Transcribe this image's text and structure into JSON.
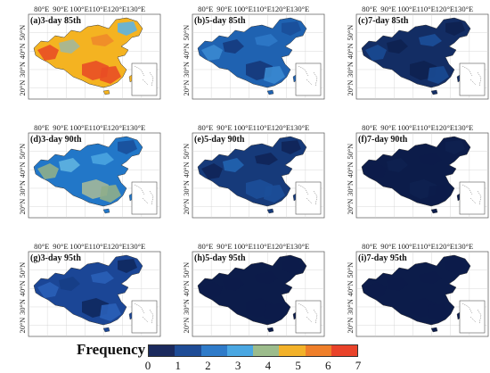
{
  "lon_ticks": [
    "80°E",
    "90°E",
    "100°E",
    "110°E",
    "120°E",
    "130°E"
  ],
  "lat_ticks": [
    "50°N",
    "40°N",
    "30°N",
    "20°N"
  ],
  "panels": [
    {
      "title": "(a)3-day 85th",
      "base": "#f4b321",
      "blobs": [
        {
          "c": "#e94e25"
        },
        {
          "c": "#e94e25"
        },
        {
          "c": "#f08a2a"
        },
        {
          "c": "#a3b79a"
        },
        {
          "c": "#e94e25"
        },
        {
          "c": "#5fb2e0"
        }
      ]
    },
    {
      "title": "(b)5-day 85th",
      "base": "#1f62b1",
      "blobs": [
        {
          "c": "#3a8ad2"
        },
        {
          "c": "#15397a"
        },
        {
          "c": "#2d79c8"
        },
        {
          "c": "#153b7e"
        },
        {
          "c": "#3a8ad2"
        },
        {
          "c": "#1a4f9a"
        }
      ]
    },
    {
      "title": "(c)7-day 85th",
      "base": "#132d64",
      "blobs": [
        {
          "c": "#1a4a92"
        },
        {
          "c": "#0e2150"
        },
        {
          "c": "#1c4f99"
        },
        {
          "c": "#0e2150"
        },
        {
          "c": "#1a4a92"
        },
        {
          "c": "#0e2150"
        }
      ]
    },
    {
      "title": "(d)3-day 90th",
      "base": "#2277c8",
      "blobs": [
        {
          "c": "#8fae8a"
        },
        {
          "c": "#a3b79a"
        },
        {
          "c": "#4aa4e0"
        },
        {
          "c": "#5fb2e0"
        },
        {
          "c": "#8fae8a"
        },
        {
          "c": "#1a4f9a"
        }
      ]
    },
    {
      "title": "(e)5-day 90th",
      "base": "#163a7a",
      "blobs": [
        {
          "c": "#0f2558"
        },
        {
          "c": "#1c4f99"
        },
        {
          "c": "#0f2558"
        },
        {
          "c": "#2164b0"
        },
        {
          "c": "#1c4f99"
        },
        {
          "c": "#0f2558"
        }
      ]
    },
    {
      "title": "(f)7-day 90th",
      "base": "#0c1c4a",
      "blobs": [
        {
          "c": "#0c1c4a"
        },
        {
          "c": "#0e2150"
        },
        {
          "c": "#0c1c4a"
        },
        {
          "c": "#0e2150"
        },
        {
          "c": "#0c1c4a"
        },
        {
          "c": "#0e2150"
        }
      ]
    },
    {
      "title": "(g)3-day 95th",
      "base": "#1b4696",
      "blobs": [
        {
          "c": "#2a5fb7"
        },
        {
          "c": "#10285e"
        },
        {
          "c": "#2a5fb7"
        },
        {
          "c": "#163d85"
        },
        {
          "c": "#2a5fb7"
        },
        {
          "c": "#10285e"
        }
      ]
    },
    {
      "title": "(h)5-day 95th",
      "base": "#0c1c4a",
      "blobs": [
        {
          "c": "#0c1c4a"
        },
        {
          "c": "#0c1c4a"
        },
        {
          "c": "#0c1c4a"
        },
        {
          "c": "#0c1c4a"
        },
        {
          "c": "#0c1c4a"
        },
        {
          "c": "#0c1c4a"
        }
      ]
    },
    {
      "title": "(i)7-day 95th",
      "base": "#0c1c4a",
      "blobs": [
        {
          "c": "#0c1c4a"
        },
        {
          "c": "#0c1c4a"
        },
        {
          "c": "#0c1c4a"
        },
        {
          "c": "#0c1c4a"
        },
        {
          "c": "#0c1c4a"
        },
        {
          "c": "#0c1c4a"
        }
      ]
    }
  ],
  "legend": {
    "title": "Frequency",
    "ticks": [
      "0",
      "1",
      "2",
      "3",
      "4",
      "5",
      "6",
      "7"
    ],
    "colors": [
      "#1b2a5e",
      "#1f4c96",
      "#2f7bc9",
      "#4aa7e2",
      "#9cbc8c",
      "#f3b22a",
      "#ef7f2a",
      "#e9432a"
    ]
  }
}
